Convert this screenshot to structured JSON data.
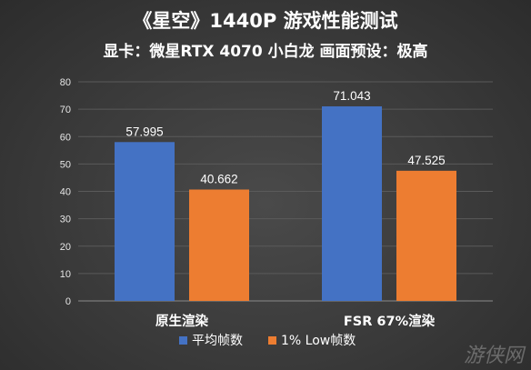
{
  "chart_data": {
    "type": "bar",
    "title": "《星空》1440P 游戏性能测试",
    "subtitle": "显卡：微星RTX 4070 小白龙 画面预设：极高",
    "categories": [
      "原生渲染",
      "FSR 67%渲染"
    ],
    "series": [
      {
        "name": "平均帧数",
        "values": [
          57.995,
          71.043
        ],
        "color": "#4472c4"
      },
      {
        "name": "1% Low帧数",
        "values": [
          40.662,
          47.525
        ],
        "color": "#ed7d31"
      }
    ],
    "value_labels": [
      [
        "57.995",
        "71.043"
      ],
      [
        "40.662",
        "47.525"
      ]
    ],
    "ylim": [
      0,
      80
    ],
    "yticks": [
      0,
      10,
      20,
      30,
      40,
      50,
      60,
      70,
      80
    ],
    "grid": true,
    "legend_position": "bottom"
  },
  "watermark": "游侠网"
}
